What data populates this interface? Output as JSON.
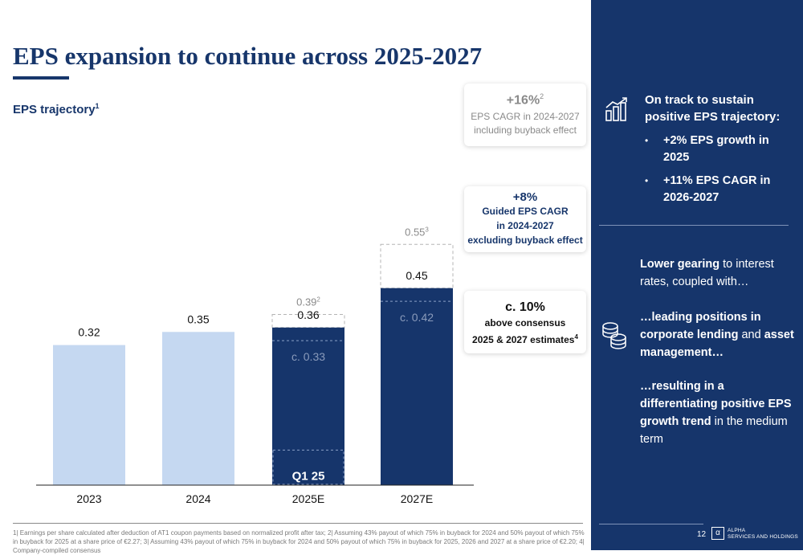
{
  "title": "EPS expansion to continue across 2025-2027",
  "subtitle": {
    "text": "EPS trajectory",
    "sup": "1"
  },
  "chart_data": {
    "type": "bar",
    "categories": [
      "2023",
      "2024",
      "2025E",
      "2027E"
    ],
    "values": [
      0.32,
      0.35,
      0.36,
      0.45
    ],
    "data_labels": [
      "0.32",
      "0.35",
      "0.36",
      "0.45"
    ],
    "bar_colors": [
      "#c5d8f1",
      "#c5d8f1",
      "#16356b",
      "#16356b"
    ],
    "inner_levels": [
      {
        "category": "2025E",
        "value": 0.33,
        "label": "c. 0.33"
      },
      {
        "category": "2027E",
        "value": 0.42,
        "label": "c. 0.42"
      }
    ],
    "upside": [
      {
        "category": "2025E",
        "value": 0.39,
        "label": "0.39",
        "sup": "2"
      },
      {
        "category": "2027E",
        "value": 0.55,
        "label": "0.55",
        "sup": "3"
      }
    ],
    "q1_segment": {
      "category": "2025E",
      "value": 0.08,
      "label": "Q1 25"
    },
    "ylim": [
      0,
      0.6
    ],
    "xlabel": "",
    "ylabel": ""
  },
  "callouts": {
    "c1": {
      "big": "+16%",
      "sup": "2",
      "line1": "EPS CAGR in 2024-2027",
      "line2": "including buyback effect"
    },
    "c2": {
      "big": "+8%",
      "line1": "Guided EPS CAGR",
      "line2": "in 2024-2027",
      "line3": "excluding buyback effect"
    },
    "c3": {
      "big": "c. 10%",
      "line1": "above consensus",
      "line2": "2025 & 2027 estimates",
      "sup": "4"
    }
  },
  "footnote": "1| Earnings per share calculated after deduction of AT1 coupon payments based on normalized profit after tax; 2| Assuming 43% payout of which 75% in buyback for 2024 and 50% payout of which 75% in buyback for 2025 at a share price of €2.27; 3| Assuming 43% payout of which 75% in buyback for 2024 and 50% payout of which 75% in buyback for 2025, 2026 and 2027 at a share price of €2.20; 4| Company-compiled consensus",
  "panel": {
    "heading": "On track to sustain positive EPS trajectory:",
    "bullets": [
      "+2% EPS growth in 2025",
      "+11% EPS CAGR in 2026-2027"
    ],
    "para1_bold": "Lower gearing",
    "para1_rest": " to interest rates, coupled with…",
    "para2_bold1": "…leading positions in corporate lending",
    "para2_mid": " and ",
    "para2_bold2": "asset management…",
    "para3_bold": "…resulting in a differentiating positive EPS growth trend",
    "para3_rest": " in the medium term",
    "page_number": "12",
    "logo_line1": "ALPHA",
    "logo_line2": "SERVICES AND HOLDINGS",
    "bg_color": "#16356b"
  }
}
